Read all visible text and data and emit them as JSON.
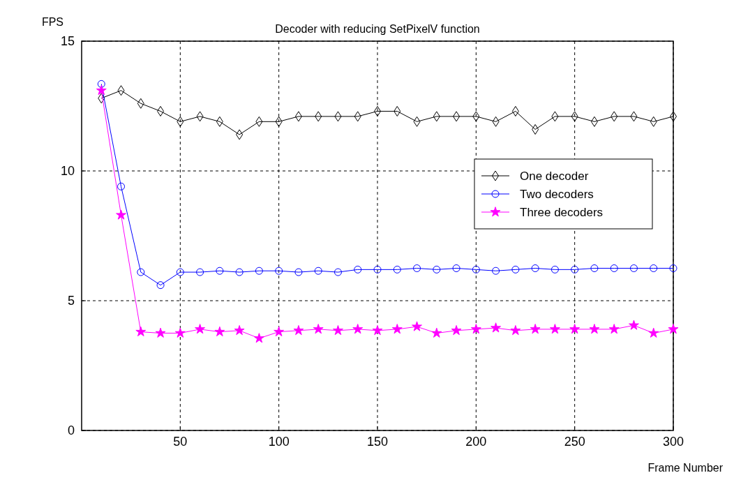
{
  "chart_data": {
    "type": "line",
    "title": "Decoder with reducing SetPixelV function",
    "xlabel": "Frame Number",
    "ylabel": "FPS",
    "x": [
      10,
      20,
      30,
      40,
      50,
      60,
      70,
      80,
      90,
      100,
      110,
      120,
      130,
      140,
      150,
      160,
      170,
      180,
      190,
      200,
      210,
      220,
      230,
      240,
      250,
      260,
      270,
      280,
      290,
      300
    ],
    "xlim": [
      0,
      300
    ],
    "xticks": [
      50,
      100,
      150,
      200,
      250,
      300
    ],
    "ylim": [
      0,
      15
    ],
    "yticks": [
      0,
      5,
      10,
      15
    ],
    "grid": true,
    "legend": "right",
    "line_style": "solid",
    "series": [
      {
        "name": "One decoder",
        "color": "#000000",
        "marker": "diamond",
        "values": [
          12.8,
          13.1,
          12.6,
          12.3,
          11.9,
          12.1,
          11.9,
          11.4,
          11.9,
          11.9,
          12.1,
          12.1,
          12.1,
          12.1,
          12.3,
          12.3,
          11.9,
          12.1,
          12.1,
          12.1,
          11.9,
          12.3,
          11.6,
          12.1,
          12.1,
          11.9,
          12.1,
          12.1,
          11.9,
          12.1
        ]
      },
      {
        "name": "Two decoders",
        "color": "#0000ff",
        "marker": "circle",
        "values": [
          13.35,
          9.4,
          6.1,
          5.6,
          6.1,
          6.1,
          6.15,
          6.1,
          6.15,
          6.15,
          6.1,
          6.15,
          6.1,
          6.2,
          6.2,
          6.2,
          6.25,
          6.2,
          6.25,
          6.2,
          6.15,
          6.2,
          6.25,
          6.2,
          6.2,
          6.25,
          6.25,
          6.25,
          6.25,
          6.25
        ]
      },
      {
        "name": "Three decoders",
        "color": "#ff00ff",
        "marker": "star",
        "values": [
          13.1,
          8.3,
          3.8,
          3.75,
          3.75,
          3.9,
          3.8,
          3.85,
          3.55,
          3.8,
          3.85,
          3.9,
          3.85,
          3.9,
          3.85,
          3.9,
          4.0,
          3.75,
          3.85,
          3.9,
          3.95,
          3.85,
          3.9,
          3.9,
          3.9,
          3.9,
          3.9,
          4.05,
          3.75,
          3.9
        ]
      }
    ]
  }
}
